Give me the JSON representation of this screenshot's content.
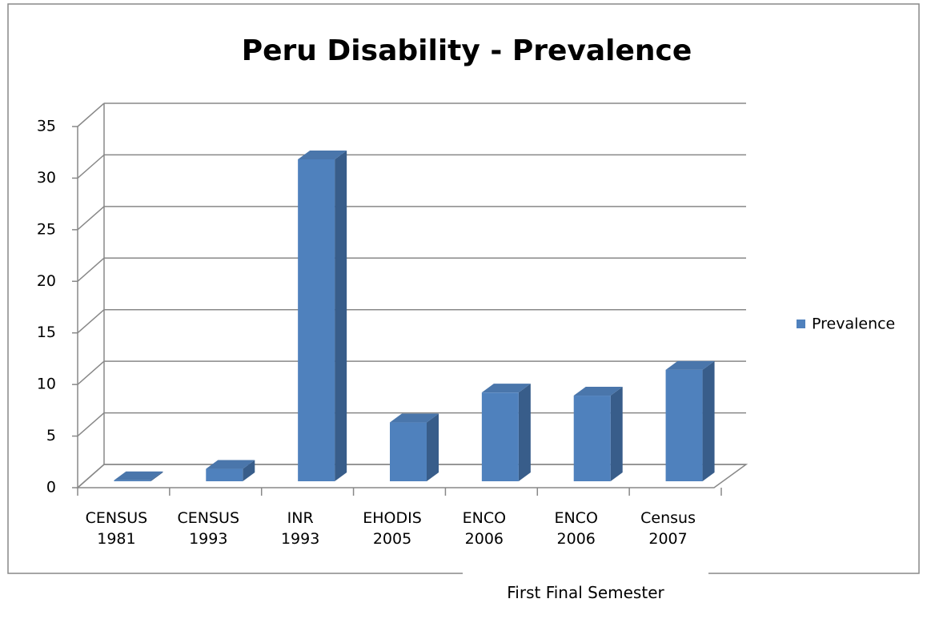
{
  "chart_data": {
    "type": "bar3d",
    "title": "Peru Disability - Prevalence",
    "categories": [
      "CENSUS 1981",
      "CENSUS 1993",
      "INR 1993",
      "EHODIS 2005",
      "ENCO 2006",
      "ENCO 2006",
      "Census 2007"
    ],
    "series": [
      {
        "name": "Prevalence",
        "color": "#4f81bd",
        "values": [
          0.1,
          1.2,
          31.2,
          5.7,
          8.6,
          8.3,
          10.8
        ]
      }
    ],
    "ylim": [
      0,
      35
    ],
    "yticks": [
      0,
      5,
      10,
      15,
      20,
      25,
      30,
      35
    ],
    "grid": true,
    "legend": "right",
    "annotation": "First Final Semester"
  }
}
